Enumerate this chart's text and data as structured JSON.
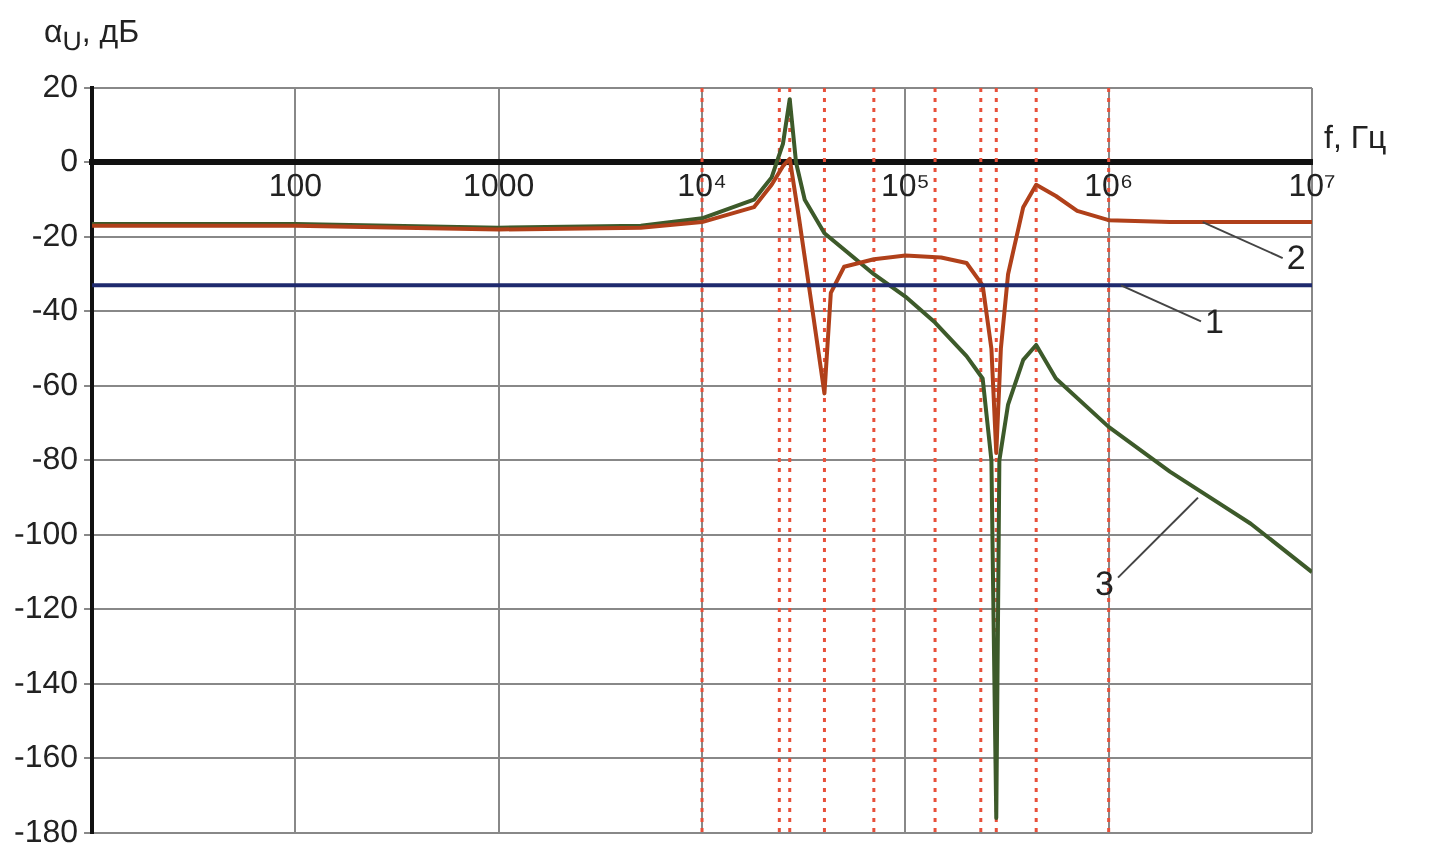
{
  "chart_data": {
    "type": "line",
    "xlabel": "f, Гц",
    "ylabel": "α$_{U}$, дБ",
    "log": "x",
    "grid": true,
    "legend": false,
    "marker": "none",
    "line_style": "solid",
    "xlim": [
      10,
      10000000
    ],
    "ylim": [
      -180,
      20
    ],
    "xticks": [
      {
        "value": 10,
        "label": null
      },
      100,
      1000,
      {
        "value": 10000,
        "label": "10⁴"
      },
      {
        "value": 100000,
        "label": "10⁵"
      },
      {
        "value": 1000000,
        "label": "10⁶"
      },
      {
        "value": 10000000,
        "label": "10⁷"
      }
    ],
    "yticks": [
      20,
      0,
      -20,
      -40,
      -60,
      -80,
      -100,
      -120,
      -140,
      -160,
      -180
    ],
    "series": [
      {
        "color": "#1f2a6e",
        "x": [
          10,
          10000000
        ],
        "values": [
          -33,
          -33
        ]
      },
      {
        "color": "#b0401a",
        "x": [
          10,
          100,
          1000,
          5000,
          10000,
          18000,
          22000,
          25000,
          27000,
          30000,
          35000,
          40000,
          43000,
          50000,
          70000,
          100000,
          150000,
          200000,
          240000,
          265000,
          280000,
          295000,
          320000,
          380000,
          440000,
          550000,
          700000,
          1000000,
          2000000,
          10000000
        ],
        "values": [
          -17,
          -17,
          -18,
          -17.5,
          -16,
          -12,
          -6,
          -1,
          1,
          -15,
          -40,
          -62,
          -35,
          -28,
          -26,
          -25,
          -25.5,
          -27,
          -33,
          -50,
          -78,
          -50,
          -30,
          -12,
          -6,
          -9,
          -13,
          -15.5,
          -16,
          -16
        ]
      },
      {
        "color": "#3d5a2a",
        "x": [
          10,
          100,
          1000,
          5000,
          10000,
          18000,
          22000,
          25000,
          27000,
          29000,
          32000,
          40000,
          70000,
          100000,
          140000,
          200000,
          240000,
          265000,
          280000,
          290000,
          320000,
          380000,
          440000,
          550000,
          1000000,
          2000000,
          5000000,
          10000000
        ],
        "values": [
          -16.5,
          -16.5,
          -17.5,
          -17,
          -15,
          -10,
          -4,
          5,
          17,
          0,
          -10,
          -19,
          -30,
          -36,
          -43,
          -52,
          -58,
          -80,
          -176,
          -80,
          -65,
          -53,
          -49,
          -58,
          -71,
          -83,
          -97,
          -110
        ]
      }
    ],
    "ref_lines": [
      {
        "axis": "x",
        "value": 10000,
        "color": "#e8503a",
        "line_style": "dotted"
      },
      {
        "axis": "x",
        "value": 24000,
        "color": "#e8503a",
        "line_style": "dotted"
      },
      {
        "axis": "x",
        "value": 27000,
        "color": "#e8503a",
        "line_style": "dotted"
      },
      {
        "axis": "x",
        "value": 40000,
        "color": "#e8503a",
        "line_style": "dotted"
      },
      {
        "axis": "x",
        "value": 70000,
        "color": "#e8503a",
        "line_style": "dotted"
      },
      {
        "axis": "x",
        "value": 140000,
        "color": "#e8503a",
        "line_style": "dotted"
      },
      {
        "axis": "x",
        "value": 235000,
        "color": "#e8503a",
        "line_style": "dotted"
      },
      {
        "axis": "x",
        "value": 280000,
        "color": "#e8503a",
        "line_style": "dotted"
      },
      {
        "axis": "x",
        "value": 440000,
        "color": "#e8503a",
        "line_style": "dotted"
      },
      {
        "axis": "x",
        "value": 1000000,
        "color": "#e8503a",
        "line_style": "dotted"
      }
    ],
    "annotations": [
      {
        "text": "1",
        "x": 1150000,
        "y": -33
      },
      {
        "text": "2",
        "x": 2900000,
        "y": -16
      },
      {
        "text": "3",
        "x": 2750000,
        "y": -90
      }
    ]
  }
}
